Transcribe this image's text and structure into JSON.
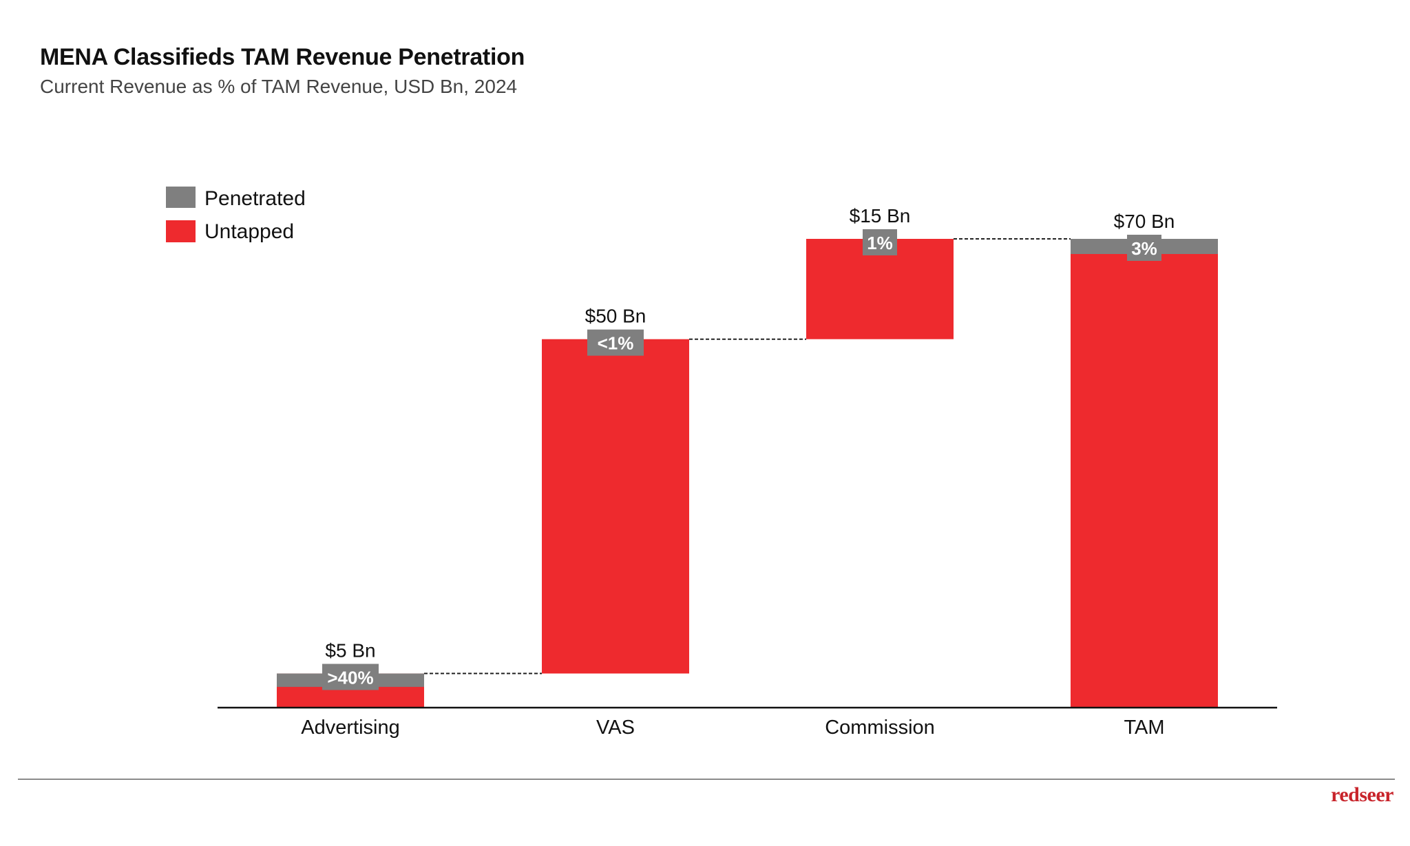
{
  "header": {
    "title": "MENA Classifieds TAM Revenue Penetration",
    "subtitle": "Current Revenue as % of TAM Revenue, USD Bn, 2024"
  },
  "colors": {
    "penetrated": "#7f7f7f",
    "untapped": "#ee2a2e",
    "brand": "#c8242b"
  },
  "footer": {
    "brand": "redseer"
  },
  "chart_data": {
    "type": "waterfall",
    "title": "MENA Classifieds TAM Revenue Penetration",
    "subtitle": "Current Revenue as % of TAM Revenue, USD Bn, 2024",
    "xlabel": "",
    "ylabel": "USD Bn",
    "ylim": [
      0,
      70
    ],
    "grid": false,
    "legend": {
      "position": "top-left",
      "entries": [
        {
          "name": "Penetrated",
          "color": "#7f7f7f"
        },
        {
          "name": "Untapped",
          "color": "#ee2a2e"
        }
      ]
    },
    "categories": [
      "Advertising",
      "VAS",
      "Commission",
      "TAM"
    ],
    "bars": [
      {
        "category": "Advertising",
        "start": 0,
        "end": 5,
        "value": 5,
        "value_label": "$5 Bn",
        "penetration_label": ">40%",
        "penetration_share": 0.4,
        "is_total": false
      },
      {
        "category": "VAS",
        "start": 5,
        "end": 55,
        "value": 50,
        "value_label": "$50 Bn",
        "penetration_label": "<1%",
        "penetration_share": 0.01,
        "is_total": false
      },
      {
        "category": "Commission",
        "start": 55,
        "end": 70,
        "value": 15,
        "value_label": "$15 Bn",
        "penetration_label": "1%",
        "penetration_share": 0.01,
        "is_total": false
      },
      {
        "category": "TAM",
        "start": 0,
        "end": 70,
        "value": 70,
        "value_label": "$70 Bn",
        "penetration_label": "3%",
        "penetration_share": 0.03,
        "is_total": true
      }
    ],
    "connectors": true
  }
}
